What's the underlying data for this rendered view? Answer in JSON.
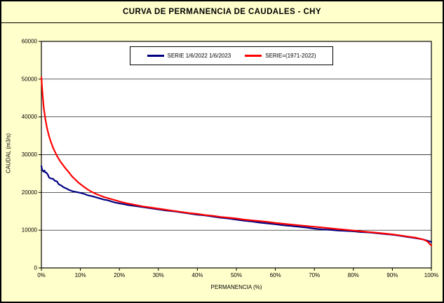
{
  "colors": {
    "frame_background": "#FFFFCC",
    "plot_background": "#FFFFFF",
    "grid": "#000000",
    "series_blue": "#000080",
    "series_red": "#FF0000"
  },
  "chart_data": {
    "type": "line",
    "title": "CURVA DE PERMANENCIA DE CAUDALES - CHY",
    "xlabel": "PERMANENCIA (%)",
    "ylabel": "CAUDAL (m3/s)",
    "xlim": [
      0,
      100
    ],
    "ylim": [
      0,
      60000
    ],
    "grid": "horizontal",
    "legend_position": "top-center",
    "y_ticks": [
      0,
      10000,
      20000,
      30000,
      40000,
      50000,
      60000
    ],
    "x_tick_values": [
      0,
      10,
      20,
      30,
      40,
      50,
      60,
      70,
      80,
      90,
      100
    ],
    "x_ticks": [
      "0%",
      "10%",
      "20%",
      "30%",
      "40%",
      "50%",
      "60%",
      "70%",
      "80%",
      "90%",
      "100%"
    ],
    "series": [
      {
        "name": "SERIE 1/6/2022 1/6/2023",
        "color": "#000080",
        "x": [
          0,
          0.2,
          0.5,
          0.8,
          1,
          1.3,
          1.6,
          2,
          2.4,
          3,
          3.4,
          4,
          4.5,
          5,
          5.5,
          6,
          6.5,
          7,
          7.5,
          8,
          9,
          10,
          11,
          12,
          13,
          14,
          15,
          16,
          17,
          18,
          19,
          20,
          22,
          24,
          26,
          28,
          30,
          32,
          34,
          36,
          38,
          40,
          42,
          44,
          46,
          48,
          50,
          52,
          54,
          56,
          58,
          60,
          62,
          64,
          66,
          68,
          70,
          72,
          74,
          76,
          78,
          80,
          82,
          84,
          86,
          88,
          90,
          92,
          94,
          96,
          98,
          100
        ],
        "y": [
          27000,
          26000,
          25500,
          25800,
          25300,
          25200,
          24800,
          23900,
          23700,
          23600,
          23100,
          22900,
          22100,
          21900,
          21500,
          21200,
          21000,
          20700,
          20500,
          20300,
          20100,
          19900,
          19600,
          19200,
          19000,
          18700,
          18400,
          18100,
          17900,
          17600,
          17300,
          17100,
          16700,
          16400,
          16100,
          15800,
          15500,
          15200,
          15000,
          14700,
          14400,
          14100,
          13900,
          13600,
          13300,
          13100,
          12800,
          12500,
          12300,
          12000,
          11800,
          11600,
          11300,
          11100,
          10900,
          10700,
          10400,
          10200,
          10100,
          9900,
          9800,
          9700,
          9500,
          9400,
          9200,
          9000,
          8800,
          8500,
          8200,
          7900,
          7500,
          6900
        ]
      },
      {
        "name": "SERIE=(1971-2022)",
        "color": "#FF0000",
        "x": [
          0,
          0.3,
          0.6,
          1,
          1.5,
          2,
          2.5,
          3,
          3.5,
          4,
          4.5,
          5,
          5.5,
          6,
          6.5,
          7,
          7.5,
          8,
          8.5,
          9,
          9.5,
          10,
          11,
          12,
          13,
          14,
          15,
          16,
          17,
          18,
          19,
          20,
          22,
          24,
          26,
          28,
          30,
          32,
          34,
          36,
          38,
          40,
          42,
          44,
          46,
          48,
          50,
          52,
          54,
          56,
          58,
          60,
          62,
          64,
          66,
          68,
          70,
          72,
          74,
          76,
          78,
          80,
          82,
          84,
          86,
          88,
          90,
          92,
          94,
          96,
          98,
          99,
          100
        ],
        "y": [
          50500,
          46000,
          42500,
          39500,
          36800,
          34800,
          33200,
          31800,
          30700,
          29700,
          28800,
          28000,
          27300,
          26600,
          26000,
          25400,
          24700,
          24100,
          23600,
          23100,
          22600,
          22200,
          21400,
          20700,
          20100,
          19600,
          19200,
          18800,
          18500,
          18200,
          17900,
          17600,
          17100,
          16700,
          16300,
          16000,
          15700,
          15400,
          15100,
          14800,
          14500,
          14300,
          14000,
          13800,
          13500,
          13300,
          13100,
          12800,
          12600,
          12400,
          12200,
          11900,
          11700,
          11500,
          11300,
          11100,
          10900,
          10700,
          10500,
          10300,
          10100,
          9900,
          9700,
          9500,
          9300,
          9100,
          8900,
          8600,
          8300,
          8000,
          7500,
          7000,
          5900
        ]
      }
    ]
  }
}
